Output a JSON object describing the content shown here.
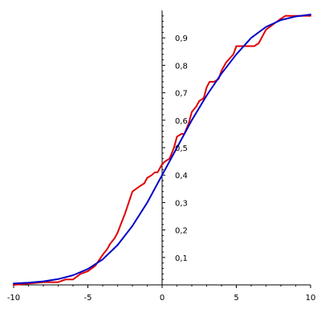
{
  "chart_data": {
    "type": "line",
    "title": "",
    "xlabel": "",
    "ylabel": "",
    "xlim": [
      -10,
      10
    ],
    "ylim": [
      0,
      1
    ],
    "grid": false,
    "legend": "none",
    "x_ticks": [
      -10,
      -5,
      0,
      5,
      10
    ],
    "x_tick_labels": [
      "-10",
      "-5",
      "0",
      "5",
      "10"
    ],
    "y_ticks": [
      0.1,
      0.2,
      0.3,
      0.4,
      0.5,
      0.6,
      0.7,
      0.8,
      0.9
    ],
    "y_tick_labels": [
      "0,1",
      "0,2",
      "0,3",
      "0,4",
      "0,5",
      "0,6",
      "0,7",
      "0,8",
      "0,9"
    ],
    "series": [
      {
        "color": "#e00000",
        "x": [
          -10,
          -8,
          -7,
          -6.5,
          -6,
          -5.5,
          -5,
          -4.5,
          -4,
          -3.7,
          -3.5,
          -3.2,
          -3,
          -2.5,
          -2,
          -1.5,
          -1.2,
          -1,
          -0.7,
          -0.5,
          -0.3,
          0,
          0.2,
          0.5,
          0.8,
          1,
          1.3,
          1.5,
          1.8,
          2,
          2.3,
          2.5,
          2.8,
          3,
          3.2,
          3.5,
          3.8,
          4,
          4.3,
          4.8,
          5,
          5.3,
          5.8,
          6.2,
          6.5,
          7,
          7.5,
          8,
          8.3,
          8.7,
          9,
          10
        ],
        "y": [
          0,
          0.01,
          0.01,
          0.02,
          0.02,
          0.04,
          0.05,
          0.07,
          0.11,
          0.13,
          0.15,
          0.17,
          0.19,
          0.26,
          0.34,
          0.36,
          0.37,
          0.39,
          0.4,
          0.41,
          0.41,
          0.44,
          0.45,
          0.46,
          0.5,
          0.54,
          0.55,
          0.55,
          0.59,
          0.63,
          0.65,
          0.67,
          0.68,
          0.72,
          0.74,
          0.74,
          0.75,
          0.78,
          0.81,
          0.84,
          0.87,
          0.87,
          0.87,
          0.87,
          0.88,
          0.93,
          0.95,
          0.97,
          0.98,
          0.98,
          0.98,
          0.98
        ]
      },
      {
        "color": "#0000cc",
        "x": [
          -10,
          -9,
          -8,
          -7,
          -6,
          -5,
          -4,
          -3,
          -2,
          -1,
          0,
          1,
          2,
          3,
          4,
          5,
          6,
          7,
          8,
          9,
          10
        ],
        "y": [
          0.005,
          0.008,
          0.013,
          0.021,
          0.035,
          0.058,
          0.093,
          0.145,
          0.215,
          0.3,
          0.4,
          0.5,
          0.6,
          0.69,
          0.77,
          0.84,
          0.9,
          0.94,
          0.965,
          0.978,
          0.985
        ]
      }
    ]
  }
}
